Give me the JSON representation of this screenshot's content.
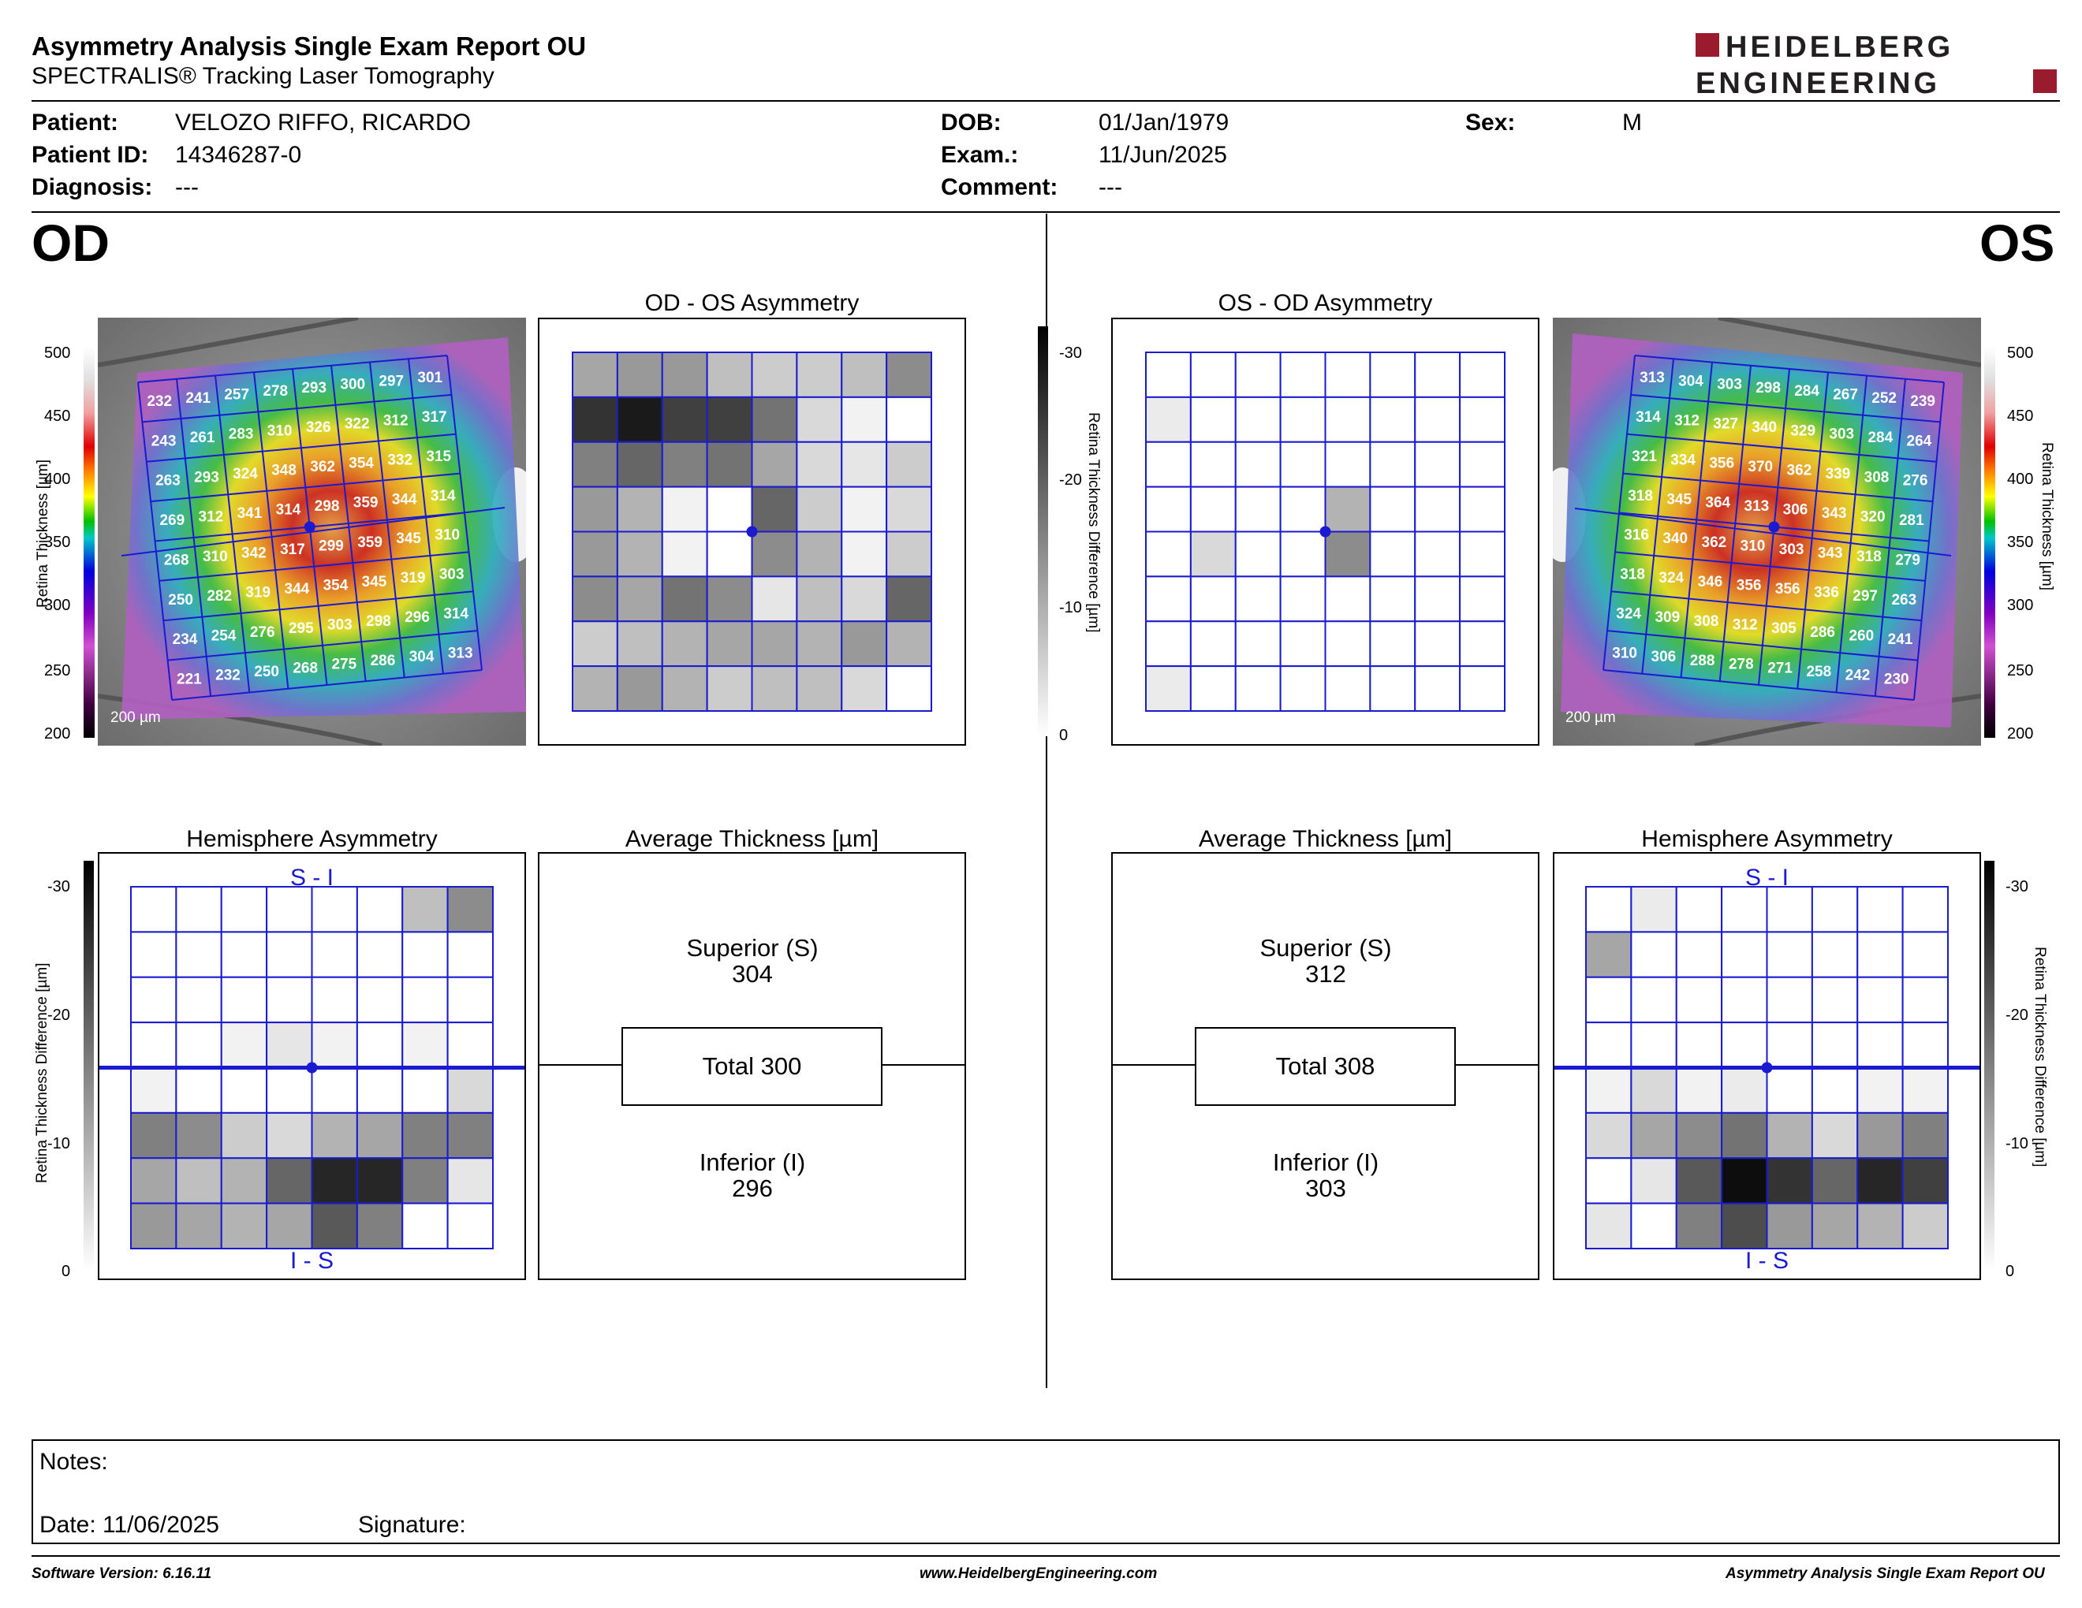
{
  "header": {
    "title": "Asymmetry Analysis Single Exam Report OU",
    "subtitle": "SPECTRALIS® Tracking Laser Tomography",
    "logo_line1": "HEIDELBERG",
    "logo_line2": "ENGINEERING"
  },
  "patient": {
    "patient_label": "Patient:",
    "patient_value": "VELOZO RIFFO, RICARDO",
    "id_label": "Patient ID:",
    "id_value": "14346287-0",
    "diagnosis_label": "Diagnosis:",
    "diagnosis_value": "---",
    "dob_label": "DOB:",
    "dob_value": "01/Jan/1979",
    "exam_label": "Exam.:",
    "exam_value": "11/Jun/2025",
    "comment_label": "Comment:",
    "comment_value": "---",
    "sex_label": "Sex:",
    "sex_value": "M"
  },
  "od": {
    "eye_label": "OD",
    "asym_title": "OD - OS Asymmetry",
    "hemi_title": "Hemisphere Asymmetry",
    "avg_title": "Average Thickness [µm]",
    "superior_label": "Superior (S)",
    "superior_value": "304",
    "total_label": "Total 300",
    "inferior_label": "Inferior (I)",
    "inferior_value": "296",
    "hemi_top": "S - I",
    "hemi_bottom": "I - S",
    "scale_bar": "200 µm",
    "thickness_grid": [
      [
        "232",
        "241",
        "257",
        "278",
        "293",
        "300",
        "297",
        "301"
      ],
      [
        "243",
        "261",
        "283",
        "310",
        "326",
        "322",
        "312",
        "317"
      ],
      [
        "263",
        "293",
        "324",
        "348",
        "362",
        "354",
        "332",
        "315"
      ],
      [
        "269",
        "312",
        "341",
        "314",
        "298",
        "359",
        "344",
        "314"
      ],
      [
        "268",
        "310",
        "342",
        "317",
        "299",
        "359",
        "345",
        "310"
      ],
      [
        "250",
        "282",
        "319",
        "344",
        "354",
        "345",
        "319",
        "303"
      ],
      [
        "234",
        "254",
        "276",
        "295",
        "303",
        "298",
        "296",
        "314"
      ],
      [
        "221",
        "232",
        "250",
        "268",
        "275",
        "286",
        "304",
        "313"
      ]
    ],
    "asym_levels": [
      [
        0.35,
        0.4,
        0.4,
        0.25,
        0.2,
        0.2,
        0.25,
        0.45
      ],
      [
        0.8,
        0.9,
        0.75,
        0.75,
        0.55,
        0.15,
        0.05,
        0
      ],
      [
        0.5,
        0.6,
        0.5,
        0.55,
        0.35,
        0.15,
        0.1,
        0.2
      ],
      [
        0.4,
        0.3,
        0.05,
        0,
        0.6,
        0.2,
        0.05,
        0.15
      ],
      [
        0.4,
        0.3,
        0.05,
        0,
        0.45,
        0.3,
        0.05,
        0.2
      ],
      [
        0.45,
        0.35,
        0.55,
        0.45,
        0.1,
        0.25,
        0.15,
        0.6
      ],
      [
        0.2,
        0.25,
        0.3,
        0.35,
        0.35,
        0.3,
        0.4,
        0.3
      ],
      [
        0.3,
        0.4,
        0.3,
        0.2,
        0.25,
        0.25,
        0.15,
        0
      ]
    ],
    "hemi_levels": [
      [
        0,
        0,
        0,
        0,
        0,
        0,
        0.25,
        0.45
      ],
      [
        0,
        0,
        0,
        0,
        0,
        0,
        0,
        0
      ],
      [
        0,
        0,
        0,
        0,
        0,
        0,
        0,
        0
      ],
      [
        0,
        0,
        0.05,
        0.1,
        0.05,
        0,
        0.05,
        0
      ],
      [
        0.05,
        0,
        0,
        0,
        0,
        0,
        0,
        0.15
      ],
      [
        0.5,
        0.45,
        0.2,
        0.15,
        0.3,
        0.35,
        0.5,
        0.5
      ],
      [
        0.35,
        0.25,
        0.3,
        0.6,
        0.85,
        0.85,
        0.5,
        0.1
      ],
      [
        0.4,
        0.35,
        0.3,
        0.35,
        0.65,
        0.5,
        0,
        0
      ]
    ]
  },
  "os": {
    "eye_label": "OS",
    "asym_title": "OS - OD Asymmetry",
    "hemi_title": "Hemisphere Asymmetry",
    "avg_title": "Average Thickness [µm]",
    "superior_label": "Superior (S)",
    "superior_value": "312",
    "total_label": "Total 308",
    "inferior_label": "Inferior (I)",
    "inferior_value": "303",
    "hemi_top": "S - I",
    "hemi_bottom": "I - S",
    "scale_bar": "200 µm",
    "thickness_grid": [
      [
        "313",
        "304",
        "303",
        "298",
        "284",
        "267",
        "252",
        "239"
      ],
      [
        "314",
        "312",
        "327",
        "340",
        "329",
        "303",
        "284",
        "264"
      ],
      [
        "321",
        "334",
        "356",
        "370",
        "362",
        "339",
        "308",
        "276"
      ],
      [
        "318",
        "345",
        "364",
        "313",
        "306",
        "343",
        "320",
        "281"
      ],
      [
        "316",
        "340",
        "362",
        "310",
        "303",
        "343",
        "318",
        "279"
      ],
      [
        "318",
        "324",
        "346",
        "356",
        "356",
        "336",
        "297",
        "263"
      ],
      [
        "324",
        "309",
        "308",
        "312",
        "305",
        "286",
        "260",
        "241"
      ],
      [
        "310",
        "306",
        "288",
        "278",
        "271",
        "258",
        "242",
        "230"
      ]
    ],
    "asym_levels": [
      [
        0,
        0,
        0,
        0,
        0,
        0,
        0,
        0
      ],
      [
        0.08,
        0,
        0,
        0,
        0,
        0,
        0,
        0
      ],
      [
        0,
        0,
        0,
        0,
        0,
        0,
        0,
        0
      ],
      [
        0,
        0,
        0,
        0,
        0.3,
        0,
        0,
        0
      ],
      [
        0,
        0.15,
        0,
        0,
        0.45,
        0,
        0,
        0
      ],
      [
        0,
        0,
        0,
        0,
        0,
        0,
        0,
        0
      ],
      [
        0,
        0,
        0,
        0,
        0,
        0,
        0,
        0
      ],
      [
        0.08,
        0,
        0,
        0,
        0,
        0,
        0,
        0
      ]
    ],
    "hemi_levels": [
      [
        0,
        0.08,
        0,
        0,
        0,
        0,
        0,
        0
      ],
      [
        0.35,
        0,
        0,
        0,
        0,
        0,
        0,
        0
      ],
      [
        0,
        0,
        0,
        0,
        0,
        0,
        0,
        0
      ],
      [
        0,
        0,
        0,
        0,
        0,
        0,
        0,
        0
      ],
      [
        0.05,
        0.15,
        0.05,
        0.08,
        0,
        0,
        0.05,
        0.05
      ],
      [
        0.15,
        0.35,
        0.45,
        0.55,
        0.3,
        0.15,
        0.4,
        0.5
      ],
      [
        0,
        0.1,
        0.65,
        0.95,
        0.8,
        0.6,
        0.85,
        0.75
      ],
      [
        0.1,
        0,
        0.5,
        0.7,
        0.4,
        0.35,
        0.3,
        0.2
      ]
    ]
  },
  "colorbar": {
    "thickness_label": "Retina Thickness [µm]",
    "thickness_ticks": [
      "500",
      "450",
      "400",
      "350",
      "300",
      "250",
      "200"
    ],
    "diff_label": "Retina Thickness Difference [µm]",
    "diff_ticks": [
      "-30",
      "-20",
      "-10",
      "0"
    ]
  },
  "notes": {
    "notes_label": "Notes:",
    "date_label": "Date: 11/06/2025",
    "signature_label": "Signature:"
  },
  "footer": {
    "left": "Software Version: 6.16.11",
    "center": "www.HeidelbergEngineering.com",
    "right": "Asymmetry Analysis Single Exam Report OU"
  },
  "colors": {
    "grid_blue": "#1a1ad0",
    "logo_red": "#9a1a2e",
    "logo_dark": "#231f20"
  }
}
